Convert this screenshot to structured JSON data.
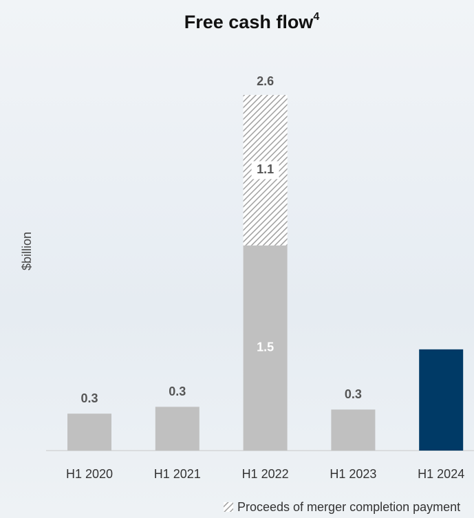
{
  "chart_data": {
    "type": "stacked-bar",
    "title": "Free cash flow",
    "title_superscript": "4",
    "y_label": "$billion",
    "categories": [
      "H1 2020",
      "H1 2021",
      "H1 2022",
      "H1 2023",
      "H1 2024"
    ],
    "series": [
      {
        "name": null,
        "colors": [
          "#c0c0c0",
          "#c0c0c0",
          "#c0c0c0",
          "#c0c0c0",
          "#003a66"
        ],
        "label_colors": [
          "#555555",
          "#555555",
          "#ffffff",
          "#555555",
          "#003a66"
        ],
        "values": [
          0.27,
          0.32,
          1.5,
          0.3,
          0.74
        ],
        "value_labels": [
          "0.3",
          "0.3",
          "1.5",
          "0.3",
          "0.7"
        ]
      },
      {
        "name": "Proceeds of merger completion payment",
        "pattern": "hatch",
        "color": "#a0a0a0",
        "values": [
          null,
          null,
          1.1,
          null,
          null
        ]
      }
    ],
    "totals": [
      null,
      null,
      2.6,
      null,
      null
    ],
    "ylim": [
      0,
      2.6
    ]
  }
}
